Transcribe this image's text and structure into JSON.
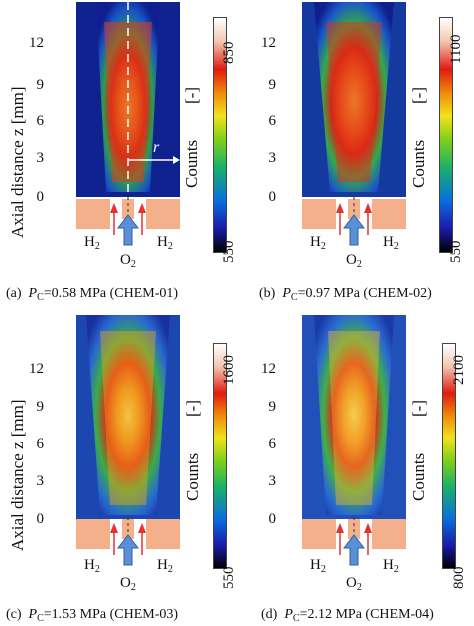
{
  "y_axis": {
    "title": "Axial distance  z  [mm]",
    "ticks": [
      "12",
      "9",
      "6",
      "3",
      "0"
    ]
  },
  "colorbar_label": "Counts",
  "colorbar_unit": "[-]",
  "annotation_r": "r",
  "gas_labels": {
    "fuel_left": "H",
    "fuel_right": "H",
    "oxidizer": "O",
    "fuel_sub": "2",
    "oxidizer_sub": "2"
  },
  "colors": {
    "nozzle": "#f4b08a",
    "arrow_blue": "#5b8fd6",
    "arrow_red": "#e8312a"
  },
  "panels": [
    {
      "letter": "(a)",
      "p_symbol": "P",
      "p_sub": "C",
      "value": "=0.58 MPa (CHEM-01)",
      "cbar_max": "850",
      "cbar_min": "550"
    },
    {
      "letter": "(b)",
      "p_symbol": "P",
      "p_sub": "C",
      "value": "=0.97 MPa (CHEM-02)",
      "cbar_max": "1100",
      "cbar_min": "550"
    },
    {
      "letter": "(c)",
      "p_symbol": "P",
      "p_sub": "C",
      "value": "=1.53 MPa (CHEM-03)",
      "cbar_max": "1600",
      "cbar_min": "550"
    },
    {
      "letter": "(d)",
      "p_symbol": "P",
      "p_sub": "C",
      "value": "=2.12 MPa (CHEM-04)",
      "cbar_max": "2100",
      "cbar_min": "800"
    }
  ]
}
